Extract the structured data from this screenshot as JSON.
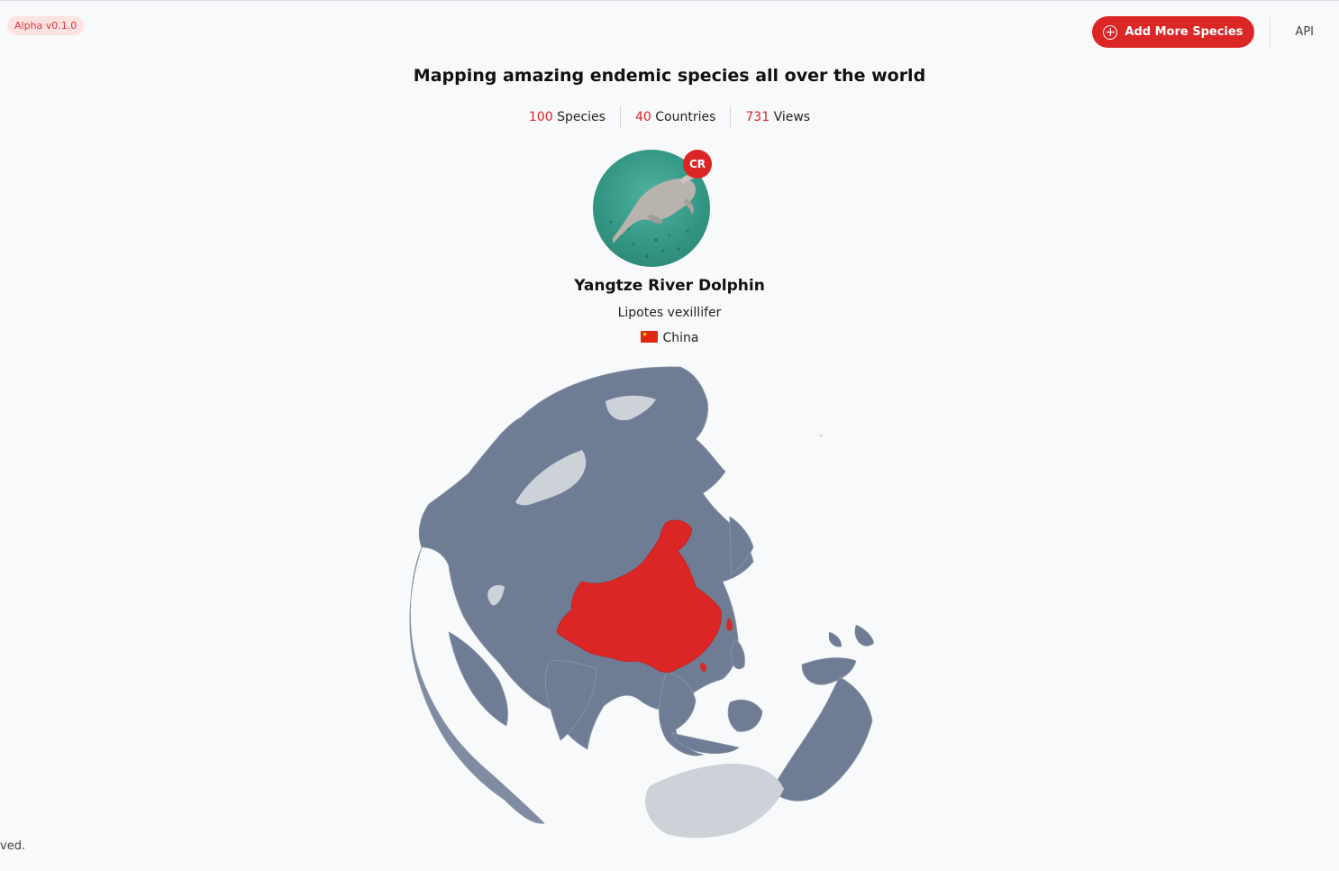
{
  "header": {
    "version": "Alpha v0.1.0",
    "add_button_label": "Add More Species",
    "api_label": "API"
  },
  "headline": "Mapping amazing endemic species all over the world",
  "stats": [
    {
      "value": "100",
      "label": "Species"
    },
    {
      "value": "40",
      "label": "Countries"
    },
    {
      "value": "731",
      "label": "Views"
    }
  ],
  "species": {
    "status": "CR",
    "common_name": "Yangtze River Dolphin",
    "scientific_name": "Lipotes vexillifer",
    "country": "China"
  },
  "map": {
    "highlight_color": "#dc2626",
    "land_color": "#6e7d94",
    "light_land_color": "#cdd2d9"
  },
  "footer": {
    "text": "ved."
  },
  "icons": {
    "add": "plus-circle-icon",
    "flag": "china-flag-icon"
  }
}
